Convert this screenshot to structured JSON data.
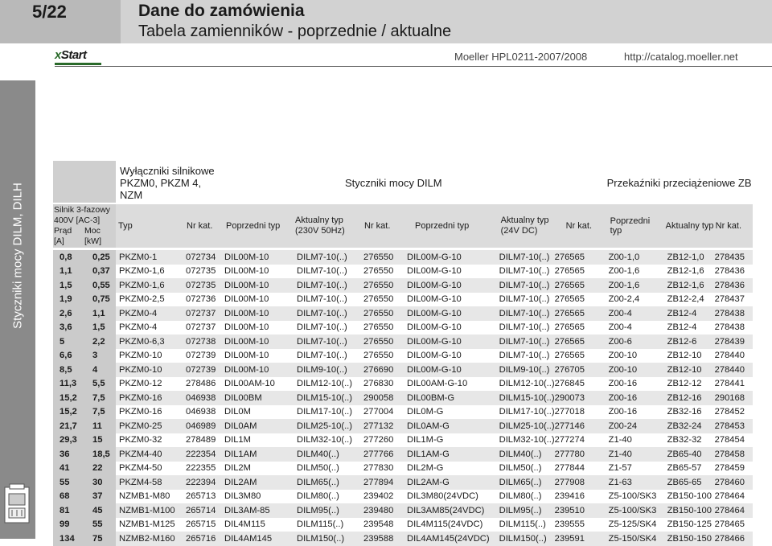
{
  "page_number": "5/22",
  "title": "Dane do zamówienia",
  "subtitle": "Tabela zamienników - poprzednie / aktualne",
  "logo": "xStart",
  "doc_ref": "Moeller HPL0211-2007/2008",
  "url": "http://catalog.moeller.net",
  "side_label": "Styczniki mocy DILM, DILH",
  "group_headers": {
    "motor": "Silnik 3-fazowy 400V [AC-3]",
    "breakers": "Wyłączniki silnikowe PKZM0, PKZM 4, NZM",
    "contactors": "Styczniki mocy DILM",
    "relays": "Przekaźniki przeciążeniowe ZB"
  },
  "columns": {
    "current": "Prąd [A]",
    "power": "Moc [kW]",
    "type": "Typ",
    "cat": "Nr kat.",
    "prev_type": "Poprzedni typ",
    "current_ac": "Aktualny typ (230V 50Hz)",
    "current_dc": "Aktualny typ (24V DC)",
    "current_type": "Aktualny typ"
  },
  "rows": [
    [
      "0,8",
      "0,25",
      "PKZM0-1",
      "072734",
      "DIL00M-10",
      "DILM7-10(..)",
      "276550",
      "DIL00M-G-10",
      "DILM7-10(..)",
      "276565",
      "Z00-1,0",
      "ZB12-1,0",
      "278435"
    ],
    [
      "1,1",
      "0,37",
      "PKZM0-1,6",
      "072735",
      "DIL00M-10",
      "DILM7-10(..)",
      "276550",
      "DIL00M-G-10",
      "DILM7-10(..)",
      "276565",
      "Z00-1,6",
      "ZB12-1,6",
      "278436"
    ],
    [
      "1,5",
      "0,55",
      "PKZM0-1,6",
      "072735",
      "DIL00M-10",
      "DILM7-10(..)",
      "276550",
      "DIL00M-G-10",
      "DILM7-10(..)",
      "276565",
      "Z00-1,6",
      "ZB12-1,6",
      "278436"
    ],
    [
      "1,9",
      "0,75",
      "PKZM0-2,5",
      "072736",
      "DIL00M-10",
      "DILM7-10(..)",
      "276550",
      "DIL00M-G-10",
      "DILM7-10(..)",
      "276565",
      "Z00-2,4",
      "ZB12-2,4",
      "278437"
    ],
    [
      "2,6",
      "1,1",
      "PKZM0-4",
      "072737",
      "DIL00M-10",
      "DILM7-10(..)",
      "276550",
      "DIL00M-G-10",
      "DILM7-10(..)",
      "276565",
      "Z00-4",
      "ZB12-4",
      "278438"
    ],
    [
      "3,6",
      "1,5",
      "PKZM0-4",
      "072737",
      "DIL00M-10",
      "DILM7-10(..)",
      "276550",
      "DIL00M-G-10",
      "DILM7-10(..)",
      "276565",
      "Z00-4",
      "ZB12-4",
      "278438"
    ],
    [
      "5",
      "2,2",
      "PKZM0-6,3",
      "072738",
      "DIL00M-10",
      "DILM7-10(..)",
      "276550",
      "DIL00M-G-10",
      "DILM7-10(..)",
      "276565",
      "Z00-6",
      "ZB12-6",
      "278439"
    ],
    [
      "6,6",
      "3",
      "PKZM0-10",
      "072739",
      "DIL00M-10",
      "DILM7-10(..)",
      "276550",
      "DIL00M-G-10",
      "DILM7-10(..)",
      "276565",
      "Z00-10",
      "ZB12-10",
      "278440"
    ],
    [
      "8,5",
      "4",
      "PKZM0-10",
      "072739",
      "DIL00M-10",
      "DILM9-10(..)",
      "276690",
      "DIL00M-G-10",
      "DILM9-10(..)",
      "276705",
      "Z00-10",
      "ZB12-10",
      "278440"
    ],
    [
      "11,3",
      "5,5",
      "PKZM0-12",
      "278486",
      "DIL00AM-10",
      "DILM12-10(..)",
      "276830",
      "DIL00AM-G-10",
      "DILM12-10(..)",
      "276845",
      "Z00-16",
      "ZB12-12",
      "278441"
    ],
    [
      "15,2",
      "7,5",
      "PKZM0-16",
      "046938",
      "DIL00BM",
      "DILM15-10(..)",
      "290058",
      "DIL00BM-G",
      "DILM15-10(..)",
      "290073",
      "Z00-16",
      "ZB12-16",
      "290168"
    ],
    [
      "15,2",
      "7,5",
      "PKZM0-16",
      "046938",
      "DIL0M",
      "DILM17-10(..)",
      "277004",
      "DIL0M-G",
      "DILM17-10(..)",
      "277018",
      "Z00-16",
      "ZB32-16",
      "278452"
    ],
    [
      "21,7",
      "11",
      "PKZM0-25",
      "046989",
      "DIL0AM",
      "DILM25-10(..)",
      "277132",
      "DIL0AM-G",
      "DILM25-10(..)",
      "277146",
      "Z00-24",
      "ZB32-24",
      "278453"
    ],
    [
      "29,3",
      "15",
      "PKZM0-32",
      "278489",
      "DIL1M",
      "DILM32-10(..)",
      "277260",
      "DIL1M-G",
      "DILM32-10(..)",
      "277274",
      "Z1-40",
      "ZB32-32",
      "278454"
    ],
    [
      "36",
      "18,5",
      "PKZM4-40",
      "222354",
      "DIL1AM",
      "DILM40(..)",
      "277766",
      "DIL1AM-G",
      "DILM40(..)",
      "277780",
      "Z1-40",
      "ZB65-40",
      "278458"
    ],
    [
      "41",
      "22",
      "PKZM4-50",
      "222355",
      "DIL2M",
      "DILM50(..)",
      "277830",
      "DIL2M-G",
      "DILM50(..)",
      "277844",
      "Z1-57",
      "ZB65-57",
      "278459"
    ],
    [
      "55",
      "30",
      "PKZM4-58",
      "222394",
      "DIL2AM",
      "DILM65(..)",
      "277894",
      "DIL2AM-G",
      "DILM65(..)",
      "277908",
      "Z1-63",
      "ZB65-65",
      "278460"
    ],
    [
      "68",
      "37",
      "NZMB1-M80",
      "265713",
      "DIL3M80",
      "DILM80(..)",
      "239402",
      "DIL3M80(24VDC)",
      "DILM80(..)",
      "239416",
      "Z5-100/SK3",
      "ZB150-100",
      "278464"
    ],
    [
      "81",
      "45",
      "NZMB1-M100",
      "265714",
      "DIL3AM-85",
      "DILM95(..)",
      "239480",
      "DIL3AM85(24VDC)",
      "DILM95(..)",
      "239510",
      "Z5-100/SK3",
      "ZB150-100",
      "278464"
    ],
    [
      "99",
      "55",
      "NZMB1-M125",
      "265715",
      "DIL4M115",
      "DILM115(..)",
      "239548",
      "DIL4M115(24VDC)",
      "DILM115(..)",
      "239555",
      "Z5-125/SK4",
      "ZB150-125",
      "278465"
    ],
    [
      "134",
      "75",
      "NZMB2-M160",
      "265716",
      "DIL4AM145",
      "DILM150(..)",
      "239588",
      "DIL4AM145(24VDC)",
      "DILM150(..)",
      "239591",
      "Z5-150/SK4",
      "ZB150-150",
      "278466"
    ]
  ]
}
